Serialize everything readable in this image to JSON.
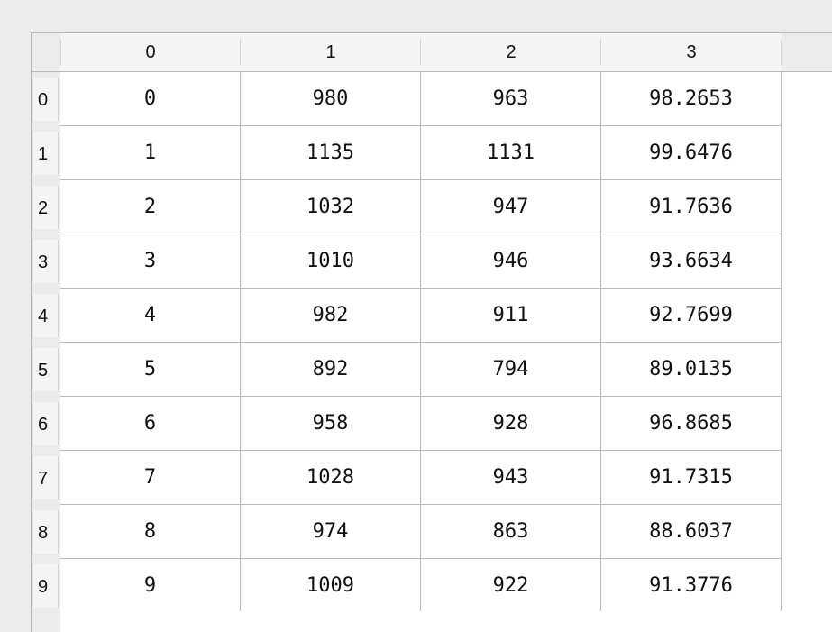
{
  "table": {
    "column_headers": [
      "0",
      "1",
      "2",
      "3"
    ],
    "row_headers": [
      "0",
      "1",
      "2",
      "3",
      "4",
      "5",
      "6",
      "7",
      "8",
      "9"
    ],
    "rows": [
      [
        "0",
        "980",
        "963",
        "98.2653"
      ],
      [
        "1",
        "1135",
        "1131",
        "99.6476"
      ],
      [
        "2",
        "1032",
        "947",
        "91.7636"
      ],
      [
        "3",
        "1010",
        "946",
        "93.6634"
      ],
      [
        "4",
        "982",
        "911",
        "92.7699"
      ],
      [
        "5",
        "892",
        "794",
        "89.0135"
      ],
      [
        "6",
        "958",
        "928",
        "96.8685"
      ],
      [
        "7",
        "1028",
        "943",
        "91.7315"
      ],
      [
        "8",
        "974",
        "863",
        "88.6037"
      ],
      [
        "9",
        "1009",
        "922",
        "91.3776"
      ]
    ]
  }
}
